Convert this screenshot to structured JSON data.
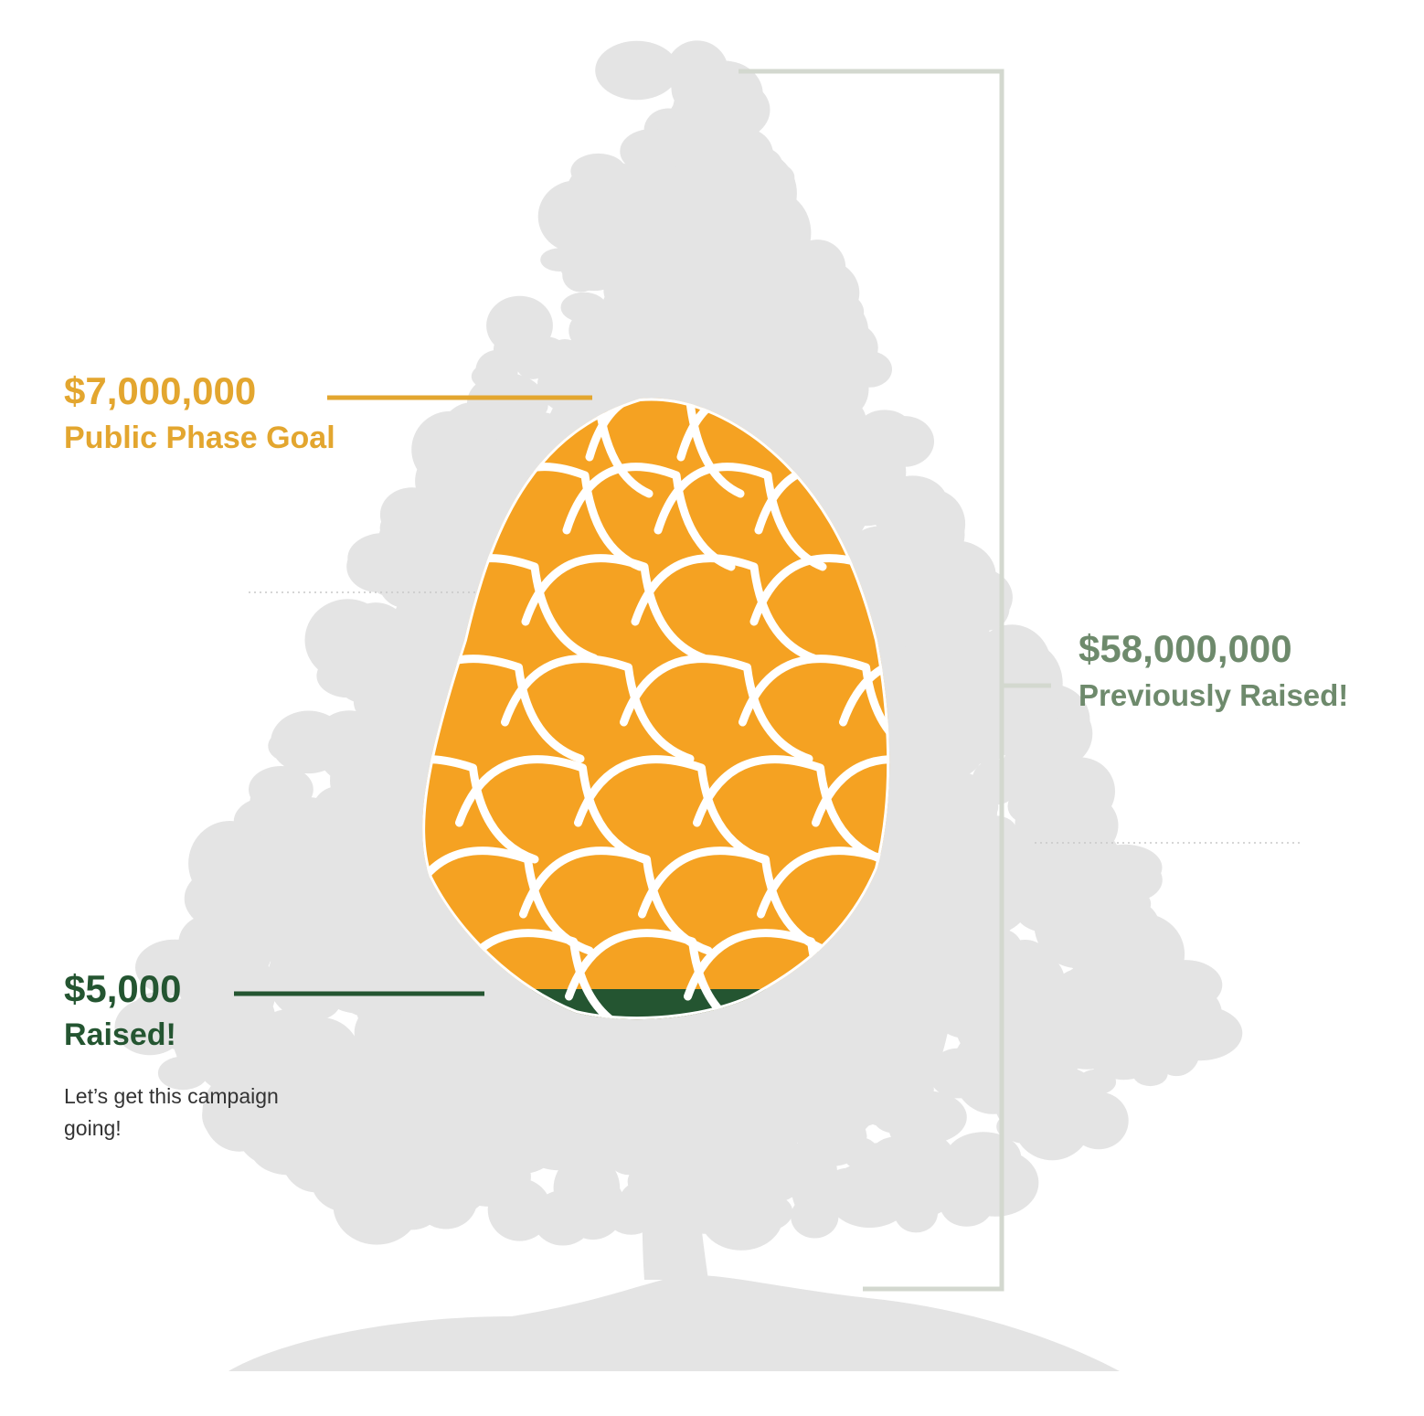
{
  "colors": {
    "tree": "#e4e4e4",
    "bracket": "#d3d8cf",
    "cone": "#f5a222",
    "cone_outline": "#ffffff",
    "raised_fill": "#245531",
    "goal_text": "#e3a62f",
    "previous_text": "#6e8a6c",
    "raised_text": "#245531",
    "dotted_line": "#c8c8c8"
  },
  "labels": {
    "goal_amount": "$7,000,000",
    "goal_label": "Public Phase Goal",
    "previous_amount": "$58,000,000",
    "previous_label": "Previously Raised!",
    "raised_amount": "$5,000",
    "raised_label": "Raised!",
    "note": "Let’s get this campaign going!"
  },
  "chart_data": {
    "type": "progress",
    "goal": 7000000,
    "raised": 5000,
    "previously_raised": 58000000,
    "progress_fraction": 0.0007
  }
}
